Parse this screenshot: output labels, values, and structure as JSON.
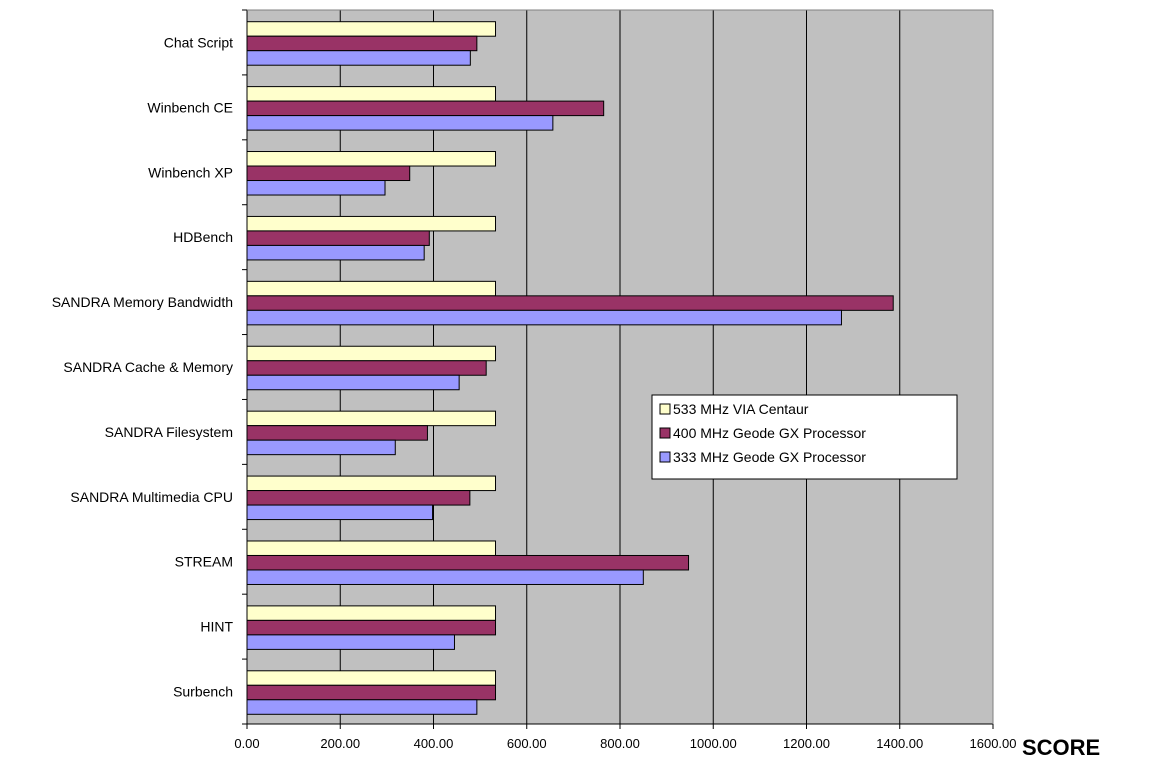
{
  "chart_data": {
    "type": "bar",
    "orientation": "horizontal",
    "categories": [
      "Chat Script",
      "Winbench CE",
      "Winbench XP",
      "HDBench",
      "SANDRA Memory Bandwidth",
      "SANDRA Cache & Memory",
      "SANDRA Filesystem",
      "SANDRA Multimedia CPU",
      "STREAM",
      "HINT",
      "Surbench"
    ],
    "series": [
      {
        "name": "533 MHz VIA Centaur",
        "color": "#FFFFCC",
        "values": [
          533,
          533,
          533,
          533,
          533,
          533,
          533,
          533,
          533,
          533,
          533
        ]
      },
      {
        "name": "400 MHz Geode GX Processor",
        "color": "#993366",
        "values": [
          493,
          765,
          349,
          391,
          1386,
          513,
          387,
          478,
          947,
          533,
          533
        ]
      },
      {
        "name": "333 MHz Geode GX Processor",
        "color": "#9999FF",
        "values": [
          479,
          656,
          296,
          380,
          1275,
          455,
          318,
          398,
          850,
          445,
          493
        ]
      }
    ],
    "xlim": [
      0,
      1600
    ],
    "xticks": [
      "0.00",
      "200.00",
      "400.00",
      "600.00",
      "800.00",
      "1000.00",
      "1200.00",
      "1400.00",
      "1600.00"
    ],
    "xlabel": "SCORE",
    "ylabel": "",
    "title": "",
    "plot_background": "#C0C0C0",
    "gridlines": true,
    "legend_position": "right-middle"
  }
}
